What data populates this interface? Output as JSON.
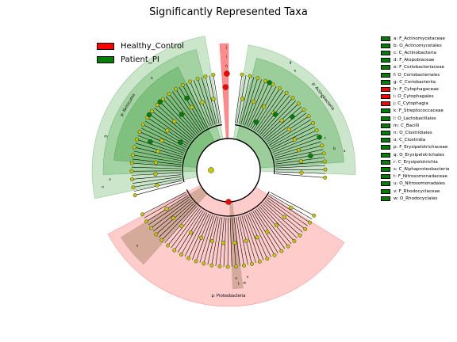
{
  "chart_data": {
    "type": "cladogram",
    "title": "Significantly Represented Taxa",
    "groups": [
      {
        "name": "Healthy_Control",
        "color": "#ff0000"
      },
      {
        "name": "Patient_PI",
        "color": "#008000"
      }
    ],
    "phylum_sectors": [
      {
        "label": "p: Firmicutes",
        "group": "Patient_PI"
      },
      {
        "label": "p: Actinobacteria",
        "group": "Patient_PI"
      },
      {
        "label": "p: Proteobacteria",
        "group": "Healthy_Control"
      }
    ],
    "taxa_key": [
      {
        "letter": "a",
        "name": "F_Actinomycetaceae",
        "group": "Patient_PI"
      },
      {
        "letter": "b",
        "name": "O_Actinomycetales",
        "group": "Patient_PI"
      },
      {
        "letter": "c",
        "name": "C_Actinobacteria",
        "group": "Patient_PI"
      },
      {
        "letter": "d",
        "name": "F_Atopobiaceae",
        "group": "Patient_PI"
      },
      {
        "letter": "e",
        "name": "F_Coriobacteriaceae",
        "group": "Patient_PI"
      },
      {
        "letter": "f",
        "name": "O_Coriobacteriales",
        "group": "Patient_PI"
      },
      {
        "letter": "g",
        "name": "C_Coriobacteriia",
        "group": "Patient_PI"
      },
      {
        "letter": "h",
        "name": "F_Cytophagaceae",
        "group": "Healthy_Control"
      },
      {
        "letter": "i",
        "name": "O_Cytophagales",
        "group": "Healthy_Control"
      },
      {
        "letter": "j",
        "name": "C_Cytophagia",
        "group": "Healthy_Control"
      },
      {
        "letter": "k",
        "name": "F_Streptococcaceae",
        "group": "Patient_PI"
      },
      {
        "letter": "l",
        "name": "O_Lactobacillales",
        "group": "Patient_PI"
      },
      {
        "letter": "m",
        "name": "C_Bacilli",
        "group": "Patient_PI"
      },
      {
        "letter": "n",
        "name": "O_Clostridiales",
        "group": "Patient_PI"
      },
      {
        "letter": "o",
        "name": "C_Clostridia",
        "group": "Patient_PI"
      },
      {
        "letter": "p",
        "name": "F_Erysipelotrichaceae",
        "group": "Patient_PI"
      },
      {
        "letter": "q",
        "name": "O_Erysipelotrichales",
        "group": "Patient_PI"
      },
      {
        "letter": "r",
        "name": "C_Erysipelotrichia",
        "group": "Patient_PI"
      },
      {
        "letter": "s",
        "name": "C_Alphaproteobacteria",
        "group": "Patient_PI"
      },
      {
        "letter": "t",
        "name": "F_Nitrosomonadaceae",
        "group": "Patient_PI"
      },
      {
        "letter": "u",
        "name": "O_Nitrosomonadales",
        "group": "Patient_PI"
      },
      {
        "letter": "v",
        "name": "F_Rhodocyclaceae",
        "group": "Patient_PI"
      },
      {
        "letter": "w",
        "name": "O_Rhodocyclales",
        "group": "Patient_PI"
      }
    ]
  }
}
